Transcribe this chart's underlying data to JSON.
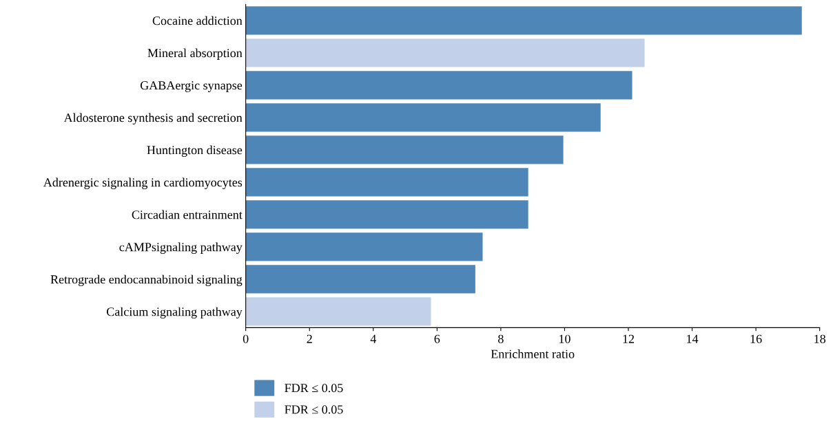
{
  "chart_data": {
    "type": "bar",
    "orientation": "horizontal",
    "xlabel": "Enrichment ratio",
    "categories": [
      "Cocaine addiction",
      "Mineral absorption",
      "GABAergic synapse",
      "Aldosterone synthesis and secretion",
      "Huntington disease",
      "Adrenergic signaling in cardiomyocytes",
      "Circadian entrainment",
      "cAMPsignaling pathway",
      "Retrograde endocannabinoid signaling",
      "Calcium signaling pathway"
    ],
    "series": [
      {
        "name": "FDR ≤ 0.05",
        "color": "#4f86b8",
        "values": [
          17.44,
          null,
          12.12,
          11.13,
          9.96,
          8.86,
          8.86,
          7.43,
          7.2,
          null
        ]
      },
      {
        "name": "FDR ≤ 0.05",
        "color": "#c3d0ea",
        "values": [
          null,
          12.51,
          null,
          null,
          null,
          null,
          null,
          null,
          null,
          5.81
        ]
      }
    ],
    "xlim": [
      0,
      18
    ],
    "xticks": [
      0,
      2,
      4,
      6,
      8,
      10,
      12,
      14,
      16,
      18
    ],
    "grid": false,
    "legend": "bottom left"
  }
}
